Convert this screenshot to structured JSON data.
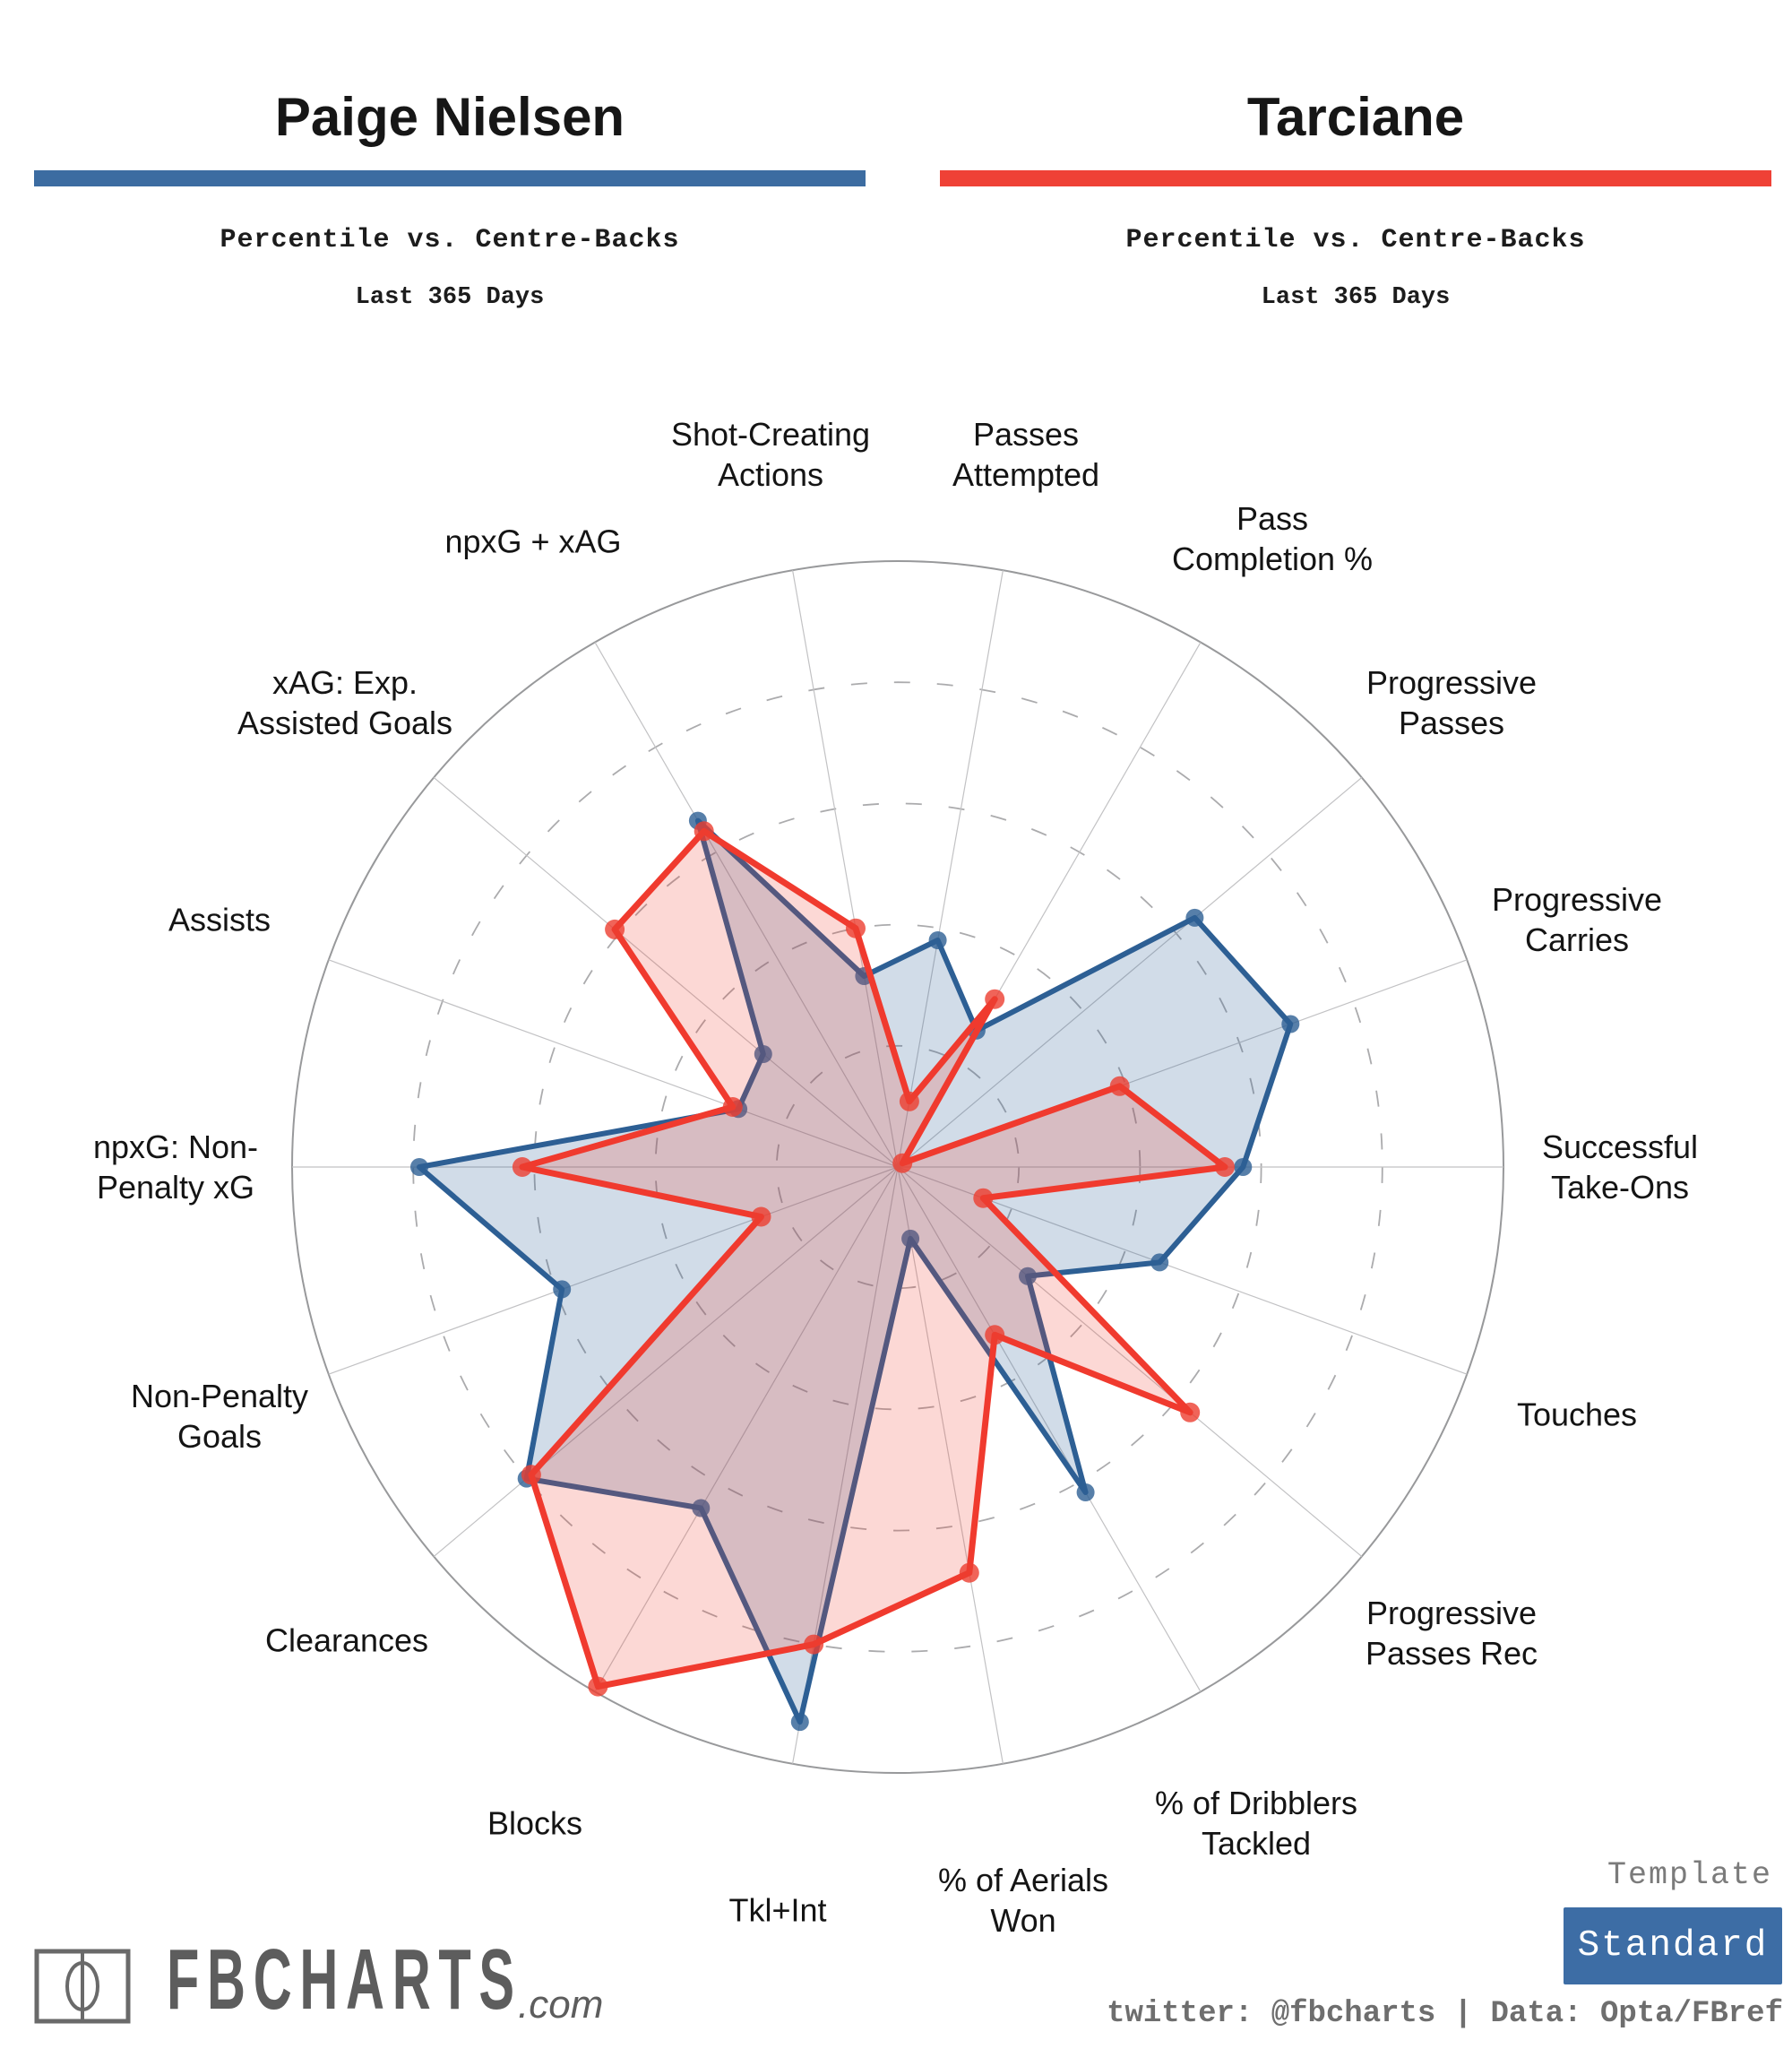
{
  "header": {
    "left": {
      "title": "Paige Nielsen",
      "subtitle": "Percentile vs. Centre-Backs",
      "period": "Last 365 Days",
      "accent": "#3c6ca1"
    },
    "right": {
      "title": "Tarciane",
      "subtitle": "Percentile vs. Centre-Backs",
      "period": "Last 365 Days",
      "accent": "#ef4136"
    }
  },
  "chart_data": {
    "type": "radar",
    "rlim": [
      0,
      100
    ],
    "rings_dashed": [
      20,
      40,
      60,
      80
    ],
    "ring_solid": 100,
    "start_angle_deg": 10,
    "step_deg": 20,
    "grid_color": "#c2c2c4",
    "ring_color": "#ababad",
    "outer_ring_color": "#98999b",
    "categories": [
      "Passes\nAttempted",
      "Pass\nCompletion %",
      "Progressive\nPasses",
      "Progressive\nCarries",
      "Successful\nTake-Ons",
      "Touches",
      "Progressive\nPasses Rec",
      "% of Dribblers\nTackled",
      "% of Aerials\nWon",
      "Tkl+Int",
      "Blocks",
      "Clearances",
      "Non-Penalty\nGoals",
      "npxG: Non-\nPenalty xG",
      "Assists",
      "xAG: Exp.\nAssisted Goals",
      "npxG + xAG",
      "Shot-Creating\nActions"
    ],
    "series": [
      {
        "name": "Paige Nielsen",
        "line_color": "#2d5f94",
        "fill_color": "rgba(46,96,148,0.22)",
        "dot_color": "#2d5f94",
        "values": [
          38,
          26,
          64,
          69,
          57,
          46,
          28,
          62,
          12,
          93,
          65,
          80,
          59,
          79,
          28,
          29,
          66,
          32
        ]
      },
      {
        "name": "Tarciane",
        "line_color": "#f03a2e",
        "fill_color": "rgba(240,58,46,0.20)",
        "dot_color": "#ec3d30",
        "values": [
          11,
          32,
          1,
          39,
          54,
          15,
          63,
          32,
          68,
          80,
          99,
          79,
          24,
          62,
          29,
          61,
          64,
          40
        ]
      }
    ]
  },
  "footer": {
    "logo_text": "FBCHARTS",
    "logo_suffix": ".com",
    "template_label": "Template",
    "template_value": "Standard",
    "credit": "twitter: @fbcharts | Data: Opta/FBref"
  }
}
